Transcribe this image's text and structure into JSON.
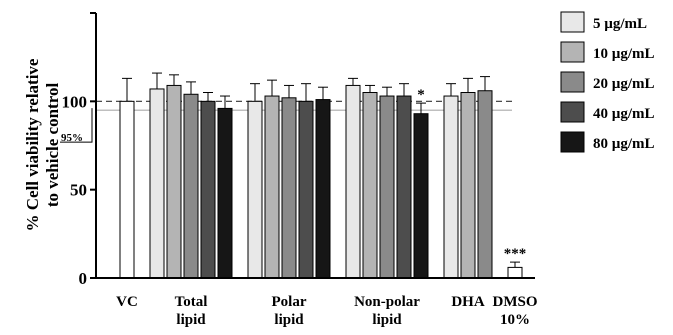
{
  "chart_data": {
    "type": "bar",
    "ylabel_line1": "% Cell viability relative",
    "ylabel_line2": "to vehicle control",
    "ylim": [
      0,
      150
    ],
    "yticks": [
      0,
      50,
      100
    ],
    "grid": false,
    "legend_position": "top-right",
    "reference_lines": [
      {
        "value": 100,
        "style": "dashed",
        "color": "#333333"
      },
      {
        "value": 95,
        "style": "solid",
        "color": "#aaaaaa",
        "label": "95%"
      }
    ],
    "series": [
      {
        "name": "5 µg/mL",
        "color": "#e8e8e8"
      },
      {
        "name": "10 µg/mL",
        "color": "#b4b4b4"
      },
      {
        "name": "20 µg/mL",
        "color": "#8a8a8a"
      },
      {
        "name": "40 µg/mL",
        "color": "#4d4d4d"
      },
      {
        "name": "80 µg/mL",
        "color": "#161616"
      }
    ],
    "groups": [
      {
        "label": [
          "VC"
        ],
        "bars": [
          {
            "series": null,
            "value": 100,
            "error": 13,
            "color": "#ffffff"
          }
        ]
      },
      {
        "label": [
          "Total",
          "lipid"
        ],
        "bars": [
          {
            "series": 0,
            "value": 107,
            "error": 9
          },
          {
            "series": 1,
            "value": 109,
            "error": 6
          },
          {
            "series": 2,
            "value": 104,
            "error": 7
          },
          {
            "series": 3,
            "value": 100,
            "error": 5
          },
          {
            "series": 4,
            "value": 96,
            "error": 7
          }
        ]
      },
      {
        "label": [
          "Polar",
          "lipid"
        ],
        "bars": [
          {
            "series": 0,
            "value": 100,
            "error": 10
          },
          {
            "series": 1,
            "value": 103,
            "error": 9
          },
          {
            "series": 2,
            "value": 102,
            "error": 7
          },
          {
            "series": 3,
            "value": 100,
            "error": 10
          },
          {
            "series": 4,
            "value": 101,
            "error": 7
          }
        ]
      },
      {
        "label": [
          "Non-polar",
          "lipid"
        ],
        "bars": [
          {
            "series": 0,
            "value": 109,
            "error": 4
          },
          {
            "series": 1,
            "value": 105,
            "error": 4
          },
          {
            "series": 2,
            "value": 103,
            "error": 5
          },
          {
            "series": 3,
            "value": 103,
            "error": 7
          },
          {
            "series": 4,
            "value": 93,
            "error": 6,
            "annotation": "*"
          }
        ]
      },
      {
        "label": [
          "DHA"
        ],
        "bars": [
          {
            "series": 0,
            "value": 103,
            "error": 7
          },
          {
            "series": 1,
            "value": 105,
            "error": 8
          },
          {
            "series": 2,
            "value": 106,
            "error": 8
          }
        ]
      },
      {
        "label": [
          "DMSO",
          "10%"
        ],
        "bars": [
          {
            "series": null,
            "value": 6,
            "error": 3,
            "color": "#ffffff",
            "annotation": "***"
          }
        ]
      }
    ]
  }
}
